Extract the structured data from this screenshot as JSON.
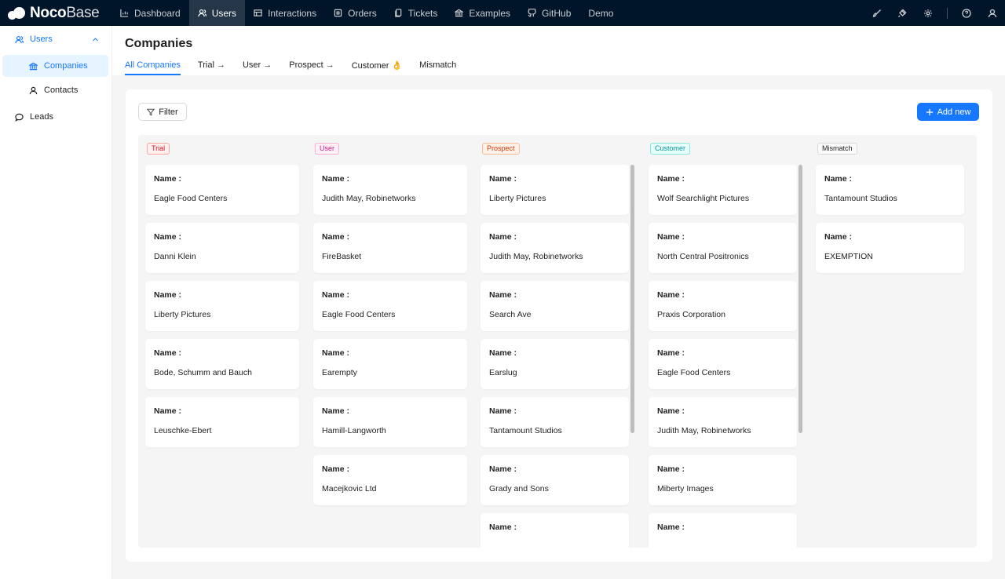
{
  "brand": {
    "name_bold": "Noco",
    "name_light": "Base"
  },
  "nav": [
    {
      "label": "Dashboard",
      "icon": "bar-chart-icon",
      "active": false
    },
    {
      "label": "Users",
      "icon": "users-icon",
      "active": true
    },
    {
      "label": "Interactions",
      "icon": "table-icon",
      "active": false
    },
    {
      "label": "Orders",
      "icon": "box-icon",
      "active": false
    },
    {
      "label": "Tickets",
      "icon": "ticket-icon",
      "active": false
    },
    {
      "label": "Examples",
      "icon": "bank-icon",
      "active": false
    },
    {
      "label": "GitHub",
      "icon": "github-icon",
      "active": false
    },
    {
      "label": "Demo",
      "icon": "",
      "active": false
    }
  ],
  "top_icons": [
    "brush-icon",
    "plugin-icon",
    "gear-icon",
    "help-icon",
    "user-icon"
  ],
  "sidebar": {
    "group_label": "Users",
    "items": [
      {
        "label": "Companies",
        "icon": "bank-icon",
        "active": true
      },
      {
        "label": "Contacts",
        "icon": "user-icon",
        "active": false
      }
    ],
    "leads_label": "Leads"
  },
  "page": {
    "title": "Companies",
    "tabs": [
      "All Companies",
      "Trial →",
      "User →",
      "Prospect →",
      "Customer 👌",
      "Mismatch"
    ],
    "active_tab": 0
  },
  "toolbar": {
    "filter_label": "Filter",
    "add_label": "Add new"
  },
  "board": {
    "field_label": "Name :",
    "columns": [
      {
        "tag": "Trial",
        "color": "#cf1322",
        "bg": "#fff1f0",
        "border": "#ffa39e",
        "cards": [
          "Eagle Food Centers",
          "Danni Klein",
          "Liberty Pictures",
          "Bode, Schumm and Bauch",
          "Leuschke-Ebert"
        ]
      },
      {
        "tag": "User",
        "color": "#c41d7f",
        "bg": "#fff0f6",
        "border": "#ffadd2",
        "cards": [
          "Judith May, Robinetworks",
          "FireBasket",
          "Eagle Food Centers",
          "Earempty",
          "Hamill-Langworth",
          "Macejkovic Ltd"
        ]
      },
      {
        "tag": "Prospect",
        "color": "#d4380d",
        "bg": "#fff2e8",
        "border": "#ffbb96",
        "cards": [
          "Liberty Pictures",
          "Judith May, Robinetworks",
          "Search Ave",
          "Earslug",
          "Tantamount Studios",
          "Grady and Sons",
          ""
        ]
      },
      {
        "tag": "Customer",
        "color": "#08979c",
        "bg": "#e6fffb",
        "border": "#87e8de",
        "cards": [
          "Wolf Searchlight Pictures",
          "North Central Positronics",
          "Praxis Corporation",
          "Eagle Food Centers",
          "Judith May, Robinetworks",
          "Miberty Images",
          ""
        ]
      },
      {
        "tag": "Mismatch",
        "color": "#1f1f1f",
        "bg": "#fafafa",
        "border": "#d9d9d9",
        "cards": [
          "Tantamount Studios",
          "EXEMPTION"
        ]
      }
    ]
  }
}
